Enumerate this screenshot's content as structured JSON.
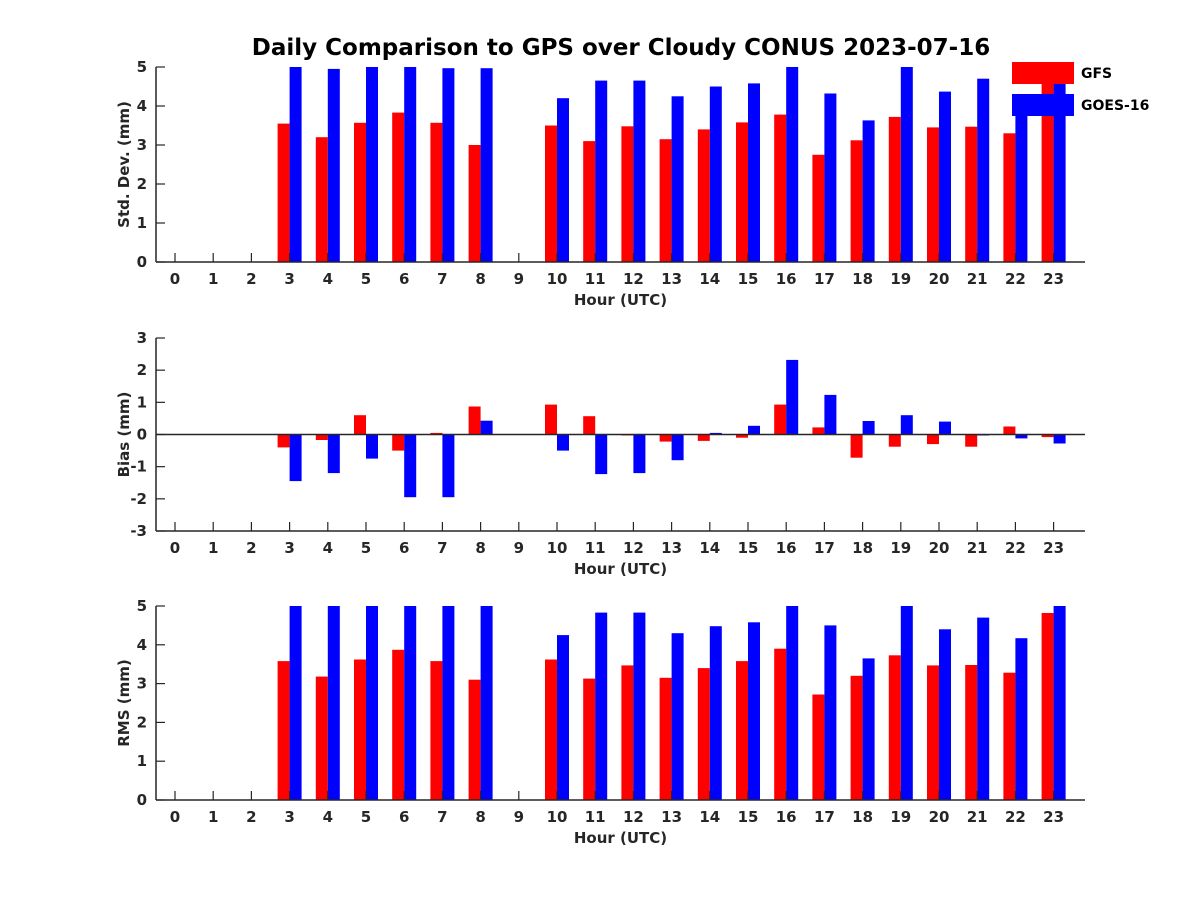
{
  "figure": {
    "title": "Daily Comparison to GPS over Cloudy CONUS 2023-07-16"
  },
  "legend": {
    "placement": "top-right",
    "items": [
      {
        "name": "GFS",
        "color": "#ff0000"
      },
      {
        "name": "GOES-16",
        "color": "#0000ff"
      }
    ]
  },
  "chart_data": [
    {
      "type": "bar",
      "xlabel": "Hour (UTC)",
      "ylabel": "Std. Dev. (mm)",
      "ylim": [
        0,
        5
      ],
      "yticks": [
        0,
        1,
        2,
        3,
        4,
        5
      ],
      "categories": [
        "0",
        "1",
        "2",
        "3",
        "4",
        "5",
        "6",
        "7",
        "8",
        "9",
        "10",
        "11",
        "12",
        "13",
        "14",
        "15",
        "16",
        "17",
        "18",
        "19",
        "20",
        "21",
        "22",
        "23"
      ],
      "grid": false,
      "series": [
        {
          "name": "GFS",
          "color": "#ff0000",
          "values": [
            null,
            null,
            null,
            3.55,
            3.2,
            3.57,
            3.83,
            3.57,
            3.0,
            null,
            3.5,
            3.1,
            3.48,
            3.15,
            3.4,
            3.58,
            3.78,
            2.75,
            3.12,
            3.72,
            3.45,
            3.47,
            3.3,
            4.6
          ]
        },
        {
          "name": "GOES-16",
          "color": "#0000ff",
          "values": [
            null,
            null,
            null,
            5.0,
            4.95,
            5.0,
            5.0,
            4.97,
            4.97,
            null,
            4.2,
            4.65,
            4.65,
            4.25,
            4.5,
            4.58,
            5.0,
            4.32,
            3.63,
            5.0,
            4.37,
            4.7,
            4.15,
            4.9
          ]
        }
      ]
    },
    {
      "type": "bar",
      "xlabel": "Hour (UTC)",
      "ylabel": "Bias (mm)",
      "ylim": [
        -3,
        3
      ],
      "yticks": [
        -3,
        -2,
        -1,
        0,
        1,
        2,
        3
      ],
      "categories": [
        "0",
        "1",
        "2",
        "3",
        "4",
        "5",
        "6",
        "7",
        "8",
        "9",
        "10",
        "11",
        "12",
        "13",
        "14",
        "15",
        "16",
        "17",
        "18",
        "19",
        "20",
        "21",
        "22",
        "23"
      ],
      "grid": false,
      "series": [
        {
          "name": "GFS",
          "color": "#ff0000",
          "values": [
            null,
            null,
            null,
            -0.4,
            -0.17,
            0.6,
            -0.5,
            0.05,
            0.87,
            null,
            0.93,
            0.57,
            -0.03,
            -0.22,
            -0.2,
            -0.1,
            0.93,
            0.22,
            -0.72,
            -0.38,
            -0.3,
            -0.38,
            0.25,
            -0.08
          ]
        },
        {
          "name": "GOES-16",
          "color": "#0000ff",
          "values": [
            null,
            null,
            null,
            -1.45,
            -1.2,
            -0.75,
            -1.95,
            -1.95,
            0.43,
            null,
            -0.5,
            -1.23,
            -1.2,
            -0.8,
            0.05,
            0.27,
            2.32,
            1.23,
            0.42,
            0.6,
            0.4,
            -0.03,
            -0.12,
            -0.28
          ]
        }
      ]
    },
    {
      "type": "bar",
      "xlabel": "Hour (UTC)",
      "ylabel": "RMS (mm)",
      "ylim": [
        0,
        5
      ],
      "yticks": [
        0,
        1,
        2,
        3,
        4,
        5
      ],
      "categories": [
        "0",
        "1",
        "2",
        "3",
        "4",
        "5",
        "6",
        "7",
        "8",
        "9",
        "10",
        "11",
        "12",
        "13",
        "14",
        "15",
        "16",
        "17",
        "18",
        "19",
        "20",
        "21",
        "22",
        "23"
      ],
      "grid": false,
      "series": [
        {
          "name": "GFS",
          "color": "#ff0000",
          "values": [
            null,
            null,
            null,
            3.58,
            3.18,
            3.62,
            3.87,
            3.58,
            3.1,
            null,
            3.62,
            3.13,
            3.47,
            3.15,
            3.4,
            3.58,
            3.9,
            2.72,
            3.2,
            3.73,
            3.47,
            3.48,
            3.28,
            4.82
          ]
        },
        {
          "name": "GOES-16",
          "color": "#0000ff",
          "values": [
            null,
            null,
            null,
            5.0,
            5.0,
            5.0,
            5.0,
            5.0,
            5.0,
            null,
            4.25,
            4.83,
            4.83,
            4.3,
            4.48,
            4.58,
            5.0,
            4.5,
            3.65,
            5.0,
            4.4,
            4.7,
            4.17,
            5.0
          ]
        }
      ]
    }
  ]
}
